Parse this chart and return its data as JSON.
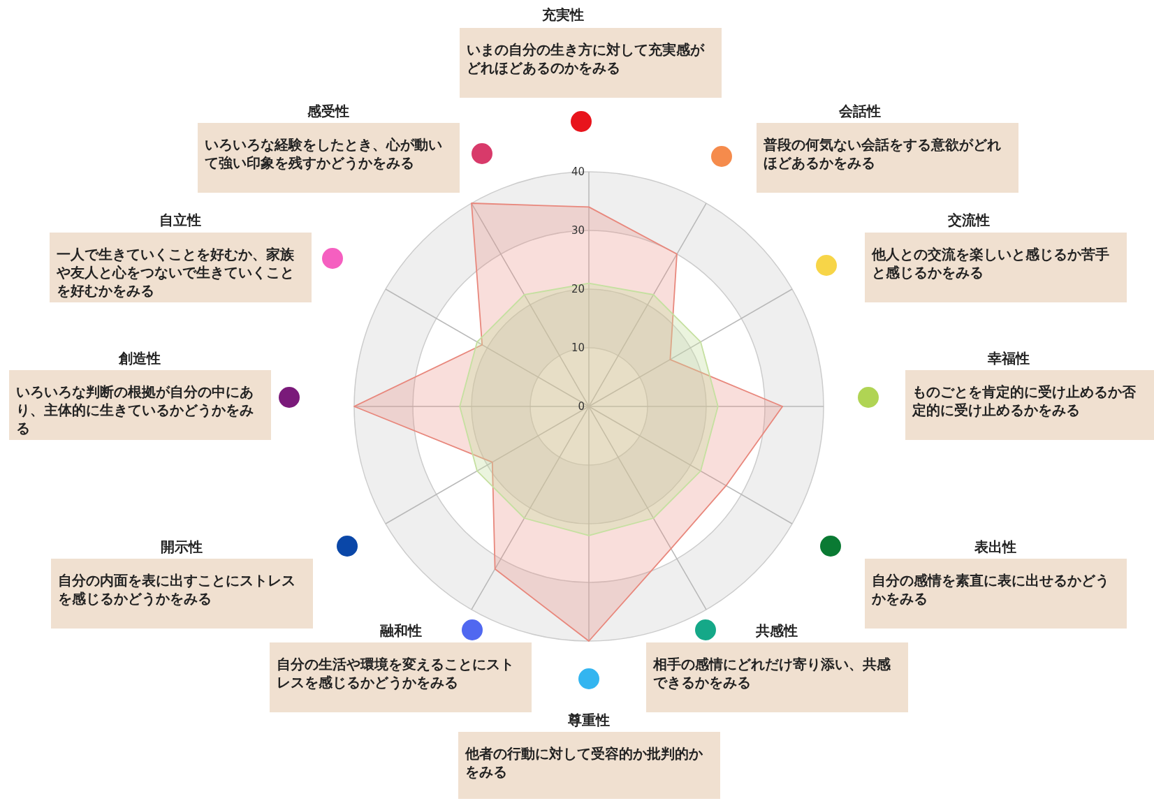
{
  "chart_data": {
    "type": "radar",
    "categories": [
      "充実性",
      "会話性",
      "交流性",
      "幸福性",
      "表出性",
      "共感性",
      "尊重性",
      "融和性",
      "開示性",
      "創造性",
      "自立性",
      "感受性"
    ],
    "ylim": [
      0,
      40
    ],
    "yticks": [
      0,
      10,
      20,
      30,
      40
    ],
    "series": [
      {
        "color": "#e8877c",
        "values": [
          34,
          30,
          16,
          33,
          27,
          28,
          40,
          32,
          19,
          40,
          21,
          40
        ]
      },
      {
        "color": "#c5e0a0",
        "values": [
          21,
          22,
          22,
          22,
          22,
          22,
          22,
          22,
          22,
          22,
          22,
          22
        ]
      }
    ],
    "annotations": [
      "いまの自分の生き方に対して充実感がどれほどあるのかをみる",
      "普段の何気ない会話をする意欲がどれほどあるかをみる",
      "他人との交流を楽しいと感じるか苦手と感じるかをみる",
      "ものごとを肯定的に受け止めるか否定的に受け止めるかをみる",
      "自分の感情を素直に表に出せるかどうかをみる",
      "相手の感情にどれだけ寄り添い、共感できるかをみる",
      "他者の行動に対して受容的か批判的かをみる",
      "自分の生活や環境を変えることにストレスを感じるかどうかをみる",
      "自分の内面を表に出すことにストレスを感じるかどうかをみる",
      "いろいろな判断の根拠が自分の中にあり、主体的に生きているかどうかをみる",
      "一人で生きていくことを好むか、家族や友人と心をつないで生きていくことを好むかをみる",
      "いろいろな経験をしたとき、心が動いて強い印象を残すかどうかをみる"
    ]
  }
}
